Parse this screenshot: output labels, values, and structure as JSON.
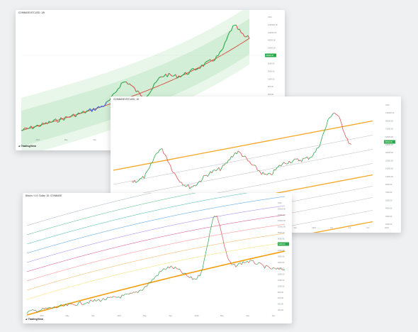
{
  "chart_data": [
    {
      "id": "chart1",
      "type": "line",
      "symbol": "COINBASE:BTCUSD, 1W",
      "brand": "TradingView",
      "x_ticks": [
        "2016",
        "May",
        "Sep",
        "2017"
      ],
      "y_ticks": [
        "USD",
        "1200000.00",
        "100000.00",
        "48000.00",
        "24000.00",
        "12000.00",
        "6000.00",
        "3000.00",
        "1500.00",
        "800.00",
        "400.00",
        "200.00"
      ],
      "last_price": "34468.00",
      "colors": {
        "price_up": "#2aa84a",
        "price_down": "#e05252",
        "ma": "#d93a2b",
        "band": "#bfe8c4"
      }
    },
    {
      "id": "chart2",
      "type": "line",
      "symbol": "COINBASE:BTCUSD, 1D",
      "x_ticks": [
        "Jul",
        "Oct",
        "2021",
        "Apr",
        "Jul",
        "Oct",
        "2022"
      ],
      "y_ticks": [
        "USD",
        "130000.00",
        "96000.00",
        "72000.00",
        "54000.00",
        "40000.00",
        "30000.00",
        "22000.00",
        "16000.00",
        "12000.00",
        "9000.00",
        "7000.00",
        "5200.00",
        "4000.00",
        "3000.00",
        "2200.00"
      ],
      "last_price": "34540.00",
      "colors": {
        "channel": "#f5a623",
        "grid_lines": "#9aa0a6",
        "up": "#2aa84a",
        "down": "#e05252"
      }
    },
    {
      "id": "chart3",
      "type": "line",
      "symbol": "Bitcoin / U.S. Dollar, 1D, COINBASE",
      "brand": "TradingView",
      "x_ticks": [
        "2016",
        "May",
        "Sep",
        "2017",
        "May",
        "Sep",
        "2018",
        "May",
        "Sep",
        "Nov"
      ],
      "y_ticks": [
        "USD",
        "25000.00",
        "20000.00",
        "15000.00",
        "10000.00",
        "8000.00",
        "6000.00",
        "5000.00",
        "4000.00",
        "3500.00",
        "3000.00",
        "2500.00",
        "2000.00",
        "1500.00",
        "1000.00",
        "800.00",
        "600.00",
        "400.00",
        "200.00"
      ],
      "last_price": "6400.00",
      "colors": {
        "ribbon": [
          "#f6e05e",
          "#f6ad55",
          "#fc8181",
          "#d53f8c",
          "#9f7aea",
          "#4299e1",
          "#38b2ac",
          "#48bb78",
          "#a0aec0"
        ],
        "support": "#f59e0b"
      }
    }
  ]
}
